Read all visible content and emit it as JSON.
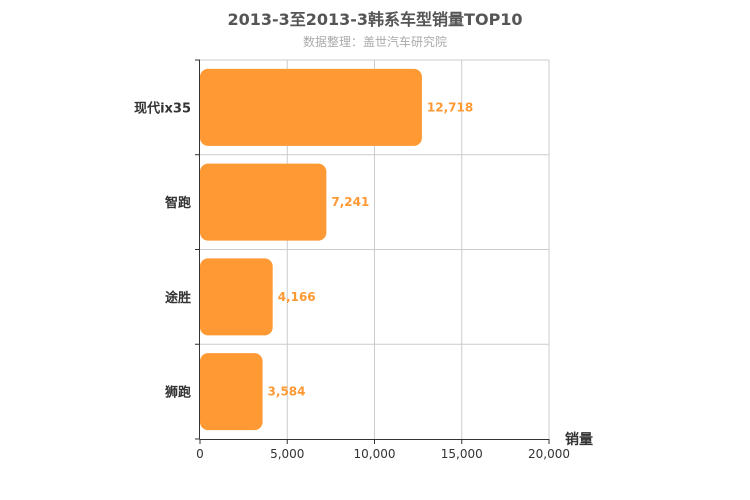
{
  "chart_data": {
    "type": "bar",
    "orientation": "horizontal",
    "title": "2013-3至2013-3韩系车型销量TOP10",
    "subtitle": "数据整理：盖世汽车研究院",
    "categories": [
      "现代ix35",
      "智跑",
      "途胜",
      "狮跑"
    ],
    "values": [
      12718,
      7241,
      4166,
      3584
    ],
    "value_labels": [
      "12,718",
      "7,241",
      "4,166",
      "3,584"
    ],
    "xlabel": "销量",
    "ylabel": "",
    "xlim": [
      0,
      20000
    ],
    "x_ticks": [
      0,
      5000,
      10000,
      15000,
      20000
    ],
    "x_tick_labels": [
      "0",
      "5,000",
      "10,000",
      "15,000",
      "20,000"
    ],
    "grid": true,
    "bar_color": "#ff9933",
    "gridline_color": "#cccccc"
  }
}
